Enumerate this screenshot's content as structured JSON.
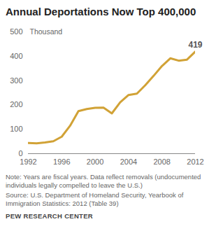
{
  "chart_data": {
    "type": "line",
    "title": "Annual Deportations Now Top 400,000",
    "y_label": "Thousand",
    "x": [
      1992,
      1993,
      1994,
      1995,
      1996,
      1997,
      1998,
      1999,
      2000,
      2001,
      2002,
      2003,
      2004,
      2005,
      2006,
      2007,
      2008,
      2009,
      2010,
      2011,
      2012
    ],
    "values": [
      43.7,
      42.5,
      45.7,
      50.9,
      69.7,
      114.4,
      174.8,
      183.1,
      188.5,
      189.0,
      165.2,
      211.1,
      240.7,
      246.4,
      281.0,
      319.4,
      359.8,
      391.4,
      381.7,
      386.0,
      419
    ],
    "value_labels": [
      null,
      null,
      null,
      null,
      null,
      null,
      null,
      null,
      null,
      null,
      null,
      null,
      null,
      null,
      null,
      null,
      null,
      null,
      null,
      null,
      "419"
    ],
    "data_labels": true,
    "color": "#d1a236",
    "xlim": [
      1992,
      2012
    ],
    "xticks": [
      1992,
      1996,
      2000,
      2004,
      2008,
      2012
    ],
    "ylim": [
      0,
      500
    ],
    "yticks": [
      0,
      100,
      200,
      300,
      400,
      500
    ],
    "grid": false,
    "note": "Note: Years are fiscal years. Data reflect removals (undocumented individuals legally compelled to leave the U.S.)",
    "source": "Source: U.S. Department of Homeland Security, Yearbook of Immigration Statistics: 2012 (Table 39)",
    "credit": "PEW RESEARCH CENTER"
  }
}
